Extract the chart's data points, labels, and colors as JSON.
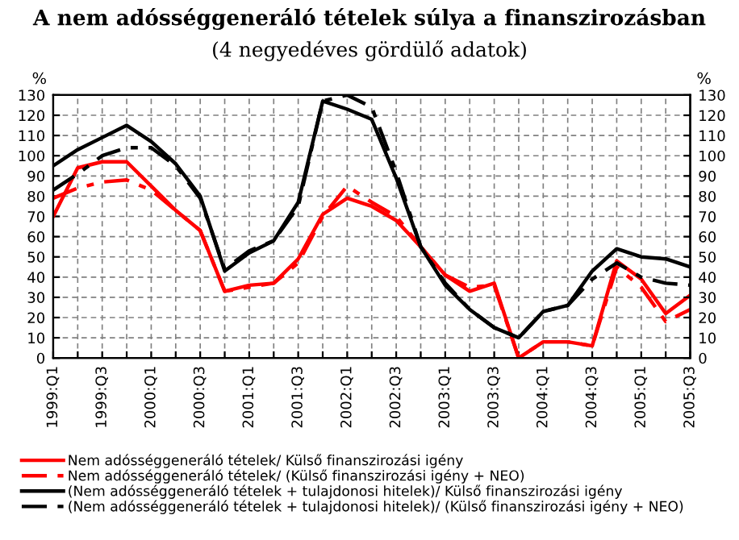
{
  "chart_data": {
    "type": "line",
    "title": "A nem adósséggeneráló tételek súlya a finanszirozásban",
    "subtitle": "(4 negyedéves gördülő adatok)",
    "ylabel": "%",
    "y2label": "%",
    "categories": [
      "1999:Q1",
      null,
      "1999:Q3",
      null,
      "2000:Q1",
      null,
      "2000:Q3",
      null,
      "2001:Q1",
      null,
      "2001:Q3",
      null,
      "2002:Q1",
      null,
      "2002:Q3",
      null,
      "2003:Q1",
      null,
      "2003:Q3",
      null,
      "2004:Q1",
      null,
      "2004:Q3",
      null,
      "2005:Q1",
      null,
      "2005:Q3"
    ],
    "series": [
      {
        "name": "Nem adósséggeneráló tételek/ Külső finanszirozási igény",
        "color": "#ff0000",
        "line_style": "solid",
        "values": [
          70,
          94,
          97,
          97,
          85,
          73,
          63,
          33,
          36,
          37,
          49,
          71,
          79,
          75,
          68,
          55,
          41,
          33,
          37,
          0,
          8,
          8,
          6,
          48,
          39,
          22,
          31
        ]
      },
      {
        "name": "Nem adósséggeneráló tételek/ (Külső finanszirozási igény + NEO)",
        "color": "#ff0000",
        "line_style": "dashed",
        "values": [
          79,
          84,
          87,
          88,
          83,
          73,
          63,
          33,
          35,
          37,
          47,
          70,
          85,
          77,
          70,
          55,
          41,
          35,
          36,
          0,
          8,
          8,
          6,
          45,
          35,
          18,
          24
        ]
      },
      {
        "name": "(Nem adósséggeneráló tételek + tulajdonosi hitelek)/ Külső finanszirozási igény",
        "color": "#000000",
        "line_style": "solid",
        "values": [
          95,
          103,
          109,
          115,
          107,
          96,
          80,
          43,
          52,
          58,
          77,
          127,
          123,
          118,
          89,
          55,
          36,
          24,
          15,
          10,
          23,
          26,
          43,
          54,
          50,
          49,
          45
        ]
      },
      {
        "name": "(Nem adósséggeneráló tételek + tulajdonosi hitelek)/ (Külső finanszirozási igény + NEO)",
        "color": "#000000",
        "line_style": "dashed",
        "values": [
          83,
          91,
          100,
          104,
          104,
          95,
          79,
          44,
          53,
          58,
          75,
          127,
          130,
          124,
          92,
          55,
          37,
          24,
          15,
          10,
          23,
          26,
          39,
          47,
          40,
          37,
          36
        ]
      }
    ],
    "ylim": [
      0,
      130
    ],
    "yticks": [
      0,
      10,
      20,
      30,
      40,
      50,
      60,
      70,
      80,
      90,
      100,
      110,
      120,
      130
    ],
    "y2lim": [
      0,
      130
    ],
    "y2ticks": [
      0,
      10,
      20,
      30,
      40,
      50,
      60,
      70,
      80,
      90,
      100,
      110,
      120,
      130
    ],
    "grid": true,
    "legend": "bottom"
  }
}
